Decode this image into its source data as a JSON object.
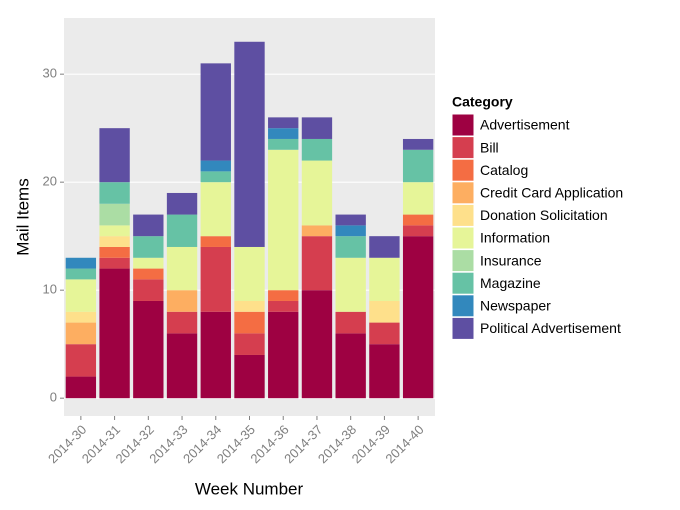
{
  "chart_data": {
    "type": "stacked_bar",
    "x_label": "Week Number",
    "y_label": "Mail Items",
    "legend_title": "Category",
    "categories": [
      "2014-30",
      "2014-31",
      "2014-32",
      "2014-33",
      "2014-34",
      "2014-35",
      "2014-36",
      "2014-37",
      "2014-38",
      "2014-39",
      "2014-40"
    ],
    "series": [
      {
        "name": "Advertisement",
        "color": "#9E0142",
        "values": [
          2,
          12,
          9,
          6,
          8,
          4,
          8,
          10,
          6,
          5,
          15
        ]
      },
      {
        "name": "Bill",
        "color": "#D53E4F",
        "values": [
          3,
          1,
          2,
          2,
          6,
          2,
          1,
          5,
          2,
          2,
          1
        ]
      },
      {
        "name": "Catalog",
        "color": "#F46D43",
        "values": [
          0,
          1,
          1,
          0,
          1,
          2,
          1,
          0,
          0,
          0,
          1
        ]
      },
      {
        "name": "Credit Card Application",
        "color": "#FDAE61",
        "values": [
          2,
          0,
          0,
          2,
          0,
          0,
          0,
          1,
          0,
          0,
          0
        ]
      },
      {
        "name": "Donation Solicitation",
        "color": "#FEE08B",
        "values": [
          1,
          1,
          0,
          0,
          0,
          1,
          0,
          0,
          0,
          2,
          0
        ]
      },
      {
        "name": "Information",
        "color": "#E6F598",
        "values": [
          3,
          1,
          1,
          4,
          5,
          5,
          13,
          6,
          5,
          4,
          3
        ]
      },
      {
        "name": "Insurance",
        "color": "#ABDDA4",
        "values": [
          0,
          2,
          0,
          0,
          0,
          0,
          0,
          0,
          0,
          0,
          0
        ]
      },
      {
        "name": "Magazine",
        "color": "#66C2A5",
        "values": [
          1,
          2,
          2,
          3,
          1,
          0,
          1,
          2,
          2,
          0,
          3
        ]
      },
      {
        "name": "Newspaper",
        "color": "#3288BD",
        "values": [
          1,
          0,
          0,
          0,
          1,
          0,
          1,
          0,
          1,
          0,
          0
        ]
      },
      {
        "name": "Political Advertisement",
        "color": "#5E4FA2",
        "values": [
          0,
          5,
          2,
          2,
          9,
          19,
          1,
          2,
          1,
          2,
          1
        ]
      }
    ],
    "ylim": [
      -1.65,
      35.2
    ],
    "yticks": [
      0,
      10,
      20,
      30
    ],
    "grid": true
  }
}
